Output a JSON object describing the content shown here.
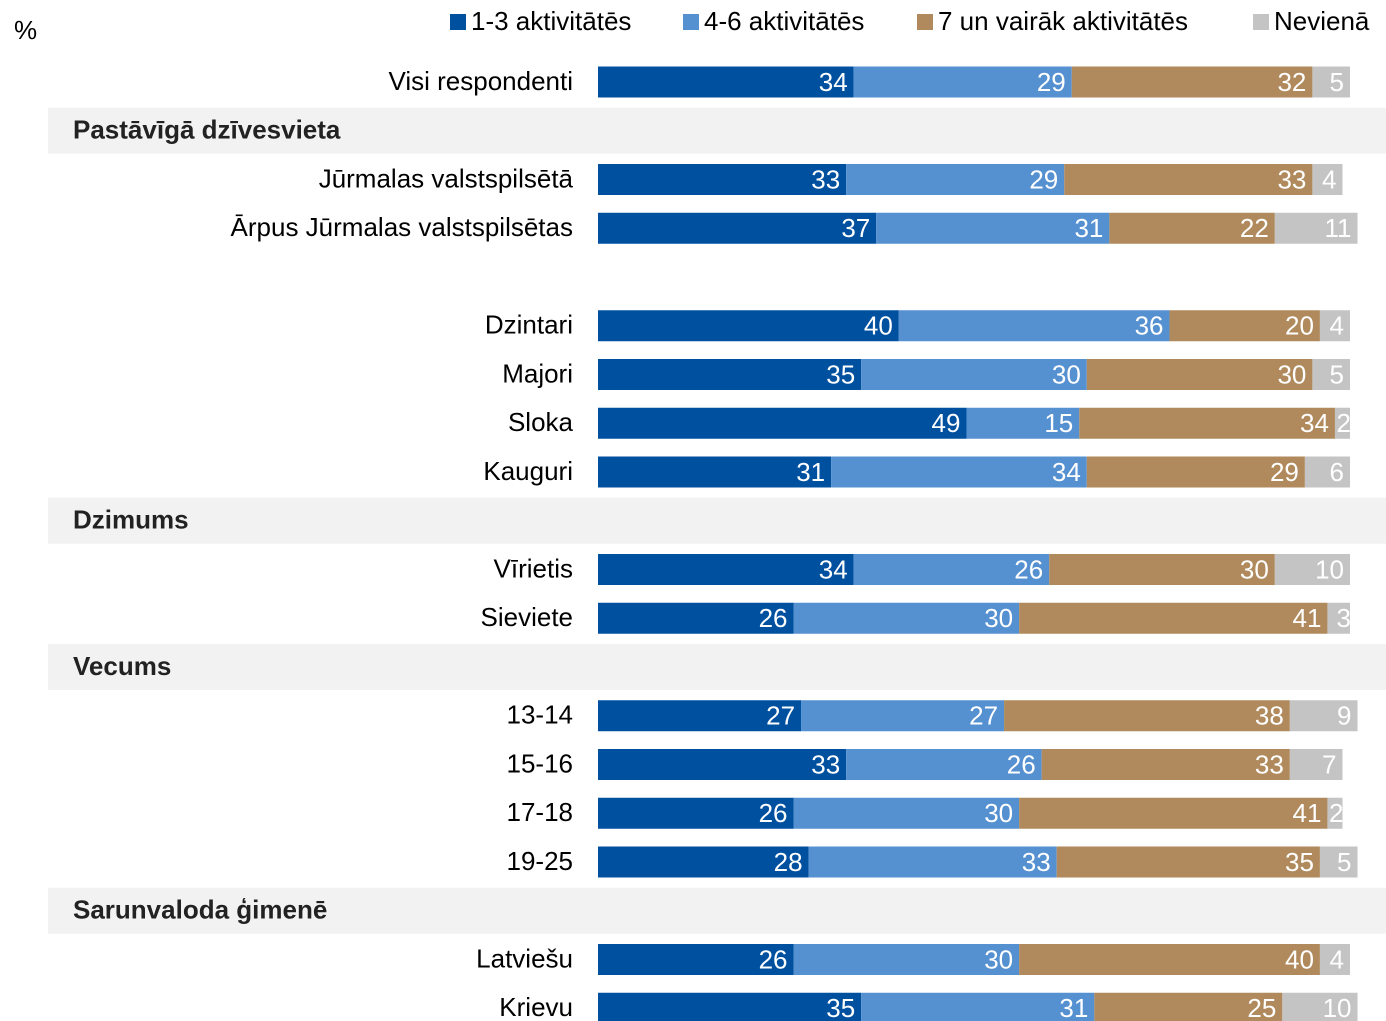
{
  "chart_data": {
    "type": "stacked-bar-horizontal",
    "unit_label": "%",
    "group_titles": [
      "Pastāvīgā dzīvesvieta",
      "Dzimums",
      "Vecums",
      "Sarunvaloda ģimenē"
    ],
    "categories": [
      "Visi respondenti",
      "Jūrmalas valstspilsētā",
      "Ārpus Jūrmalas valstspilsētas",
      "Dzintari",
      "Majori",
      "Sloka",
      "Kauguri",
      "Vīrietis",
      "Sieviete",
      "13-14",
      "15-16",
      "17-18",
      "19-25",
      "Latviešu",
      "Krievu"
    ],
    "xlim": [
      0,
      100
    ],
    "series": [
      {
        "name": "1-3 aktivitātēs",
        "color": "#0050a0",
        "values": [
          34,
          33,
          37,
          40,
          35,
          49,
          31,
          34,
          26,
          27,
          33,
          26,
          28,
          26,
          35
        ]
      },
      {
        "name": "4-6 aktivitātēs",
        "color": "#5590d0",
        "values": [
          29,
          29,
          31,
          36,
          30,
          15,
          34,
          26,
          30,
          27,
          26,
          30,
          33,
          30,
          31
        ]
      },
      {
        "name": "7 un vairāk aktivitātēs",
        "color": "#b08a5c",
        "values": [
          32,
          33,
          22,
          20,
          30,
          34,
          29,
          30,
          41,
          38,
          33,
          41,
          35,
          40,
          25
        ]
      },
      {
        "name": "Nevienā",
        "color": "#c4c4c4",
        "values": [
          5,
          4,
          11,
          4,
          5,
          2,
          6,
          10,
          3,
          9,
          7,
          2,
          5,
          4,
          10
        ]
      }
    ]
  }
}
